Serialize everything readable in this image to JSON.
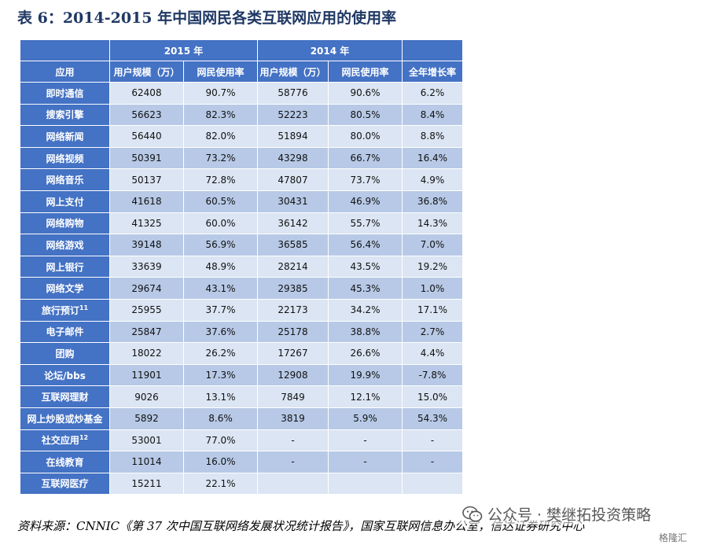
{
  "title": "表 6：2014-2015 年中国网民各类互联网应用的使用率",
  "table": {
    "group_headers": {
      "y2015": "2015 年",
      "y2014": "2014 年"
    },
    "column_headers": {
      "app": "应用",
      "users_2015": "用户规模（万）",
      "rate_2015": "网民使用率",
      "users_2014": "用户规模（万）",
      "rate_2014": "网民使用率",
      "growth": "全年增长率"
    },
    "rows": [
      {
        "app": "即时通信",
        "sup": "",
        "users_2015": "62408",
        "rate_2015": "90.7%",
        "users_2014": "58776",
        "rate_2014": "90.6%",
        "growth": "6.2%"
      },
      {
        "app": "搜索引擎",
        "sup": "",
        "users_2015": "56623",
        "rate_2015": "82.3%",
        "users_2014": "52223",
        "rate_2014": "80.5%",
        "growth": "8.4%"
      },
      {
        "app": "网络新闻",
        "sup": "",
        "users_2015": "56440",
        "rate_2015": "82.0%",
        "users_2014": "51894",
        "rate_2014": "80.0%",
        "growth": "8.8%"
      },
      {
        "app": "网络视频",
        "sup": "",
        "users_2015": "50391",
        "rate_2015": "73.2%",
        "users_2014": "43298",
        "rate_2014": "66.7%",
        "growth": "16.4%"
      },
      {
        "app": "网络音乐",
        "sup": "",
        "users_2015": "50137",
        "rate_2015": "72.8%",
        "users_2014": "47807",
        "rate_2014": "73.7%",
        "growth": "4.9%"
      },
      {
        "app": "网上支付",
        "sup": "",
        "users_2015": "41618",
        "rate_2015": "60.5%",
        "users_2014": "30431",
        "rate_2014": "46.9%",
        "growth": "36.8%"
      },
      {
        "app": "网络购物",
        "sup": "",
        "users_2015": "41325",
        "rate_2015": "60.0%",
        "users_2014": "36142",
        "rate_2014": "55.7%",
        "growth": "14.3%"
      },
      {
        "app": "网络游戏",
        "sup": "",
        "users_2015": "39148",
        "rate_2015": "56.9%",
        "users_2014": "36585",
        "rate_2014": "56.4%",
        "growth": "7.0%"
      },
      {
        "app": "网上银行",
        "sup": "",
        "users_2015": "33639",
        "rate_2015": "48.9%",
        "users_2014": "28214",
        "rate_2014": "43.5%",
        "growth": "19.2%"
      },
      {
        "app": "网络文学",
        "sup": "",
        "users_2015": "29674",
        "rate_2015": "43.1%",
        "users_2014": "29385",
        "rate_2014": "45.3%",
        "growth": "1.0%"
      },
      {
        "app": "旅行预订",
        "sup": "11",
        "users_2015": "25955",
        "rate_2015": "37.7%",
        "users_2014": "22173",
        "rate_2014": "34.2%",
        "growth": "17.1%"
      },
      {
        "app": "电子邮件",
        "sup": "",
        "users_2015": "25847",
        "rate_2015": "37.6%",
        "users_2014": "25178",
        "rate_2014": "38.8%",
        "growth": "2.7%"
      },
      {
        "app": "团购",
        "sup": "",
        "users_2015": "18022",
        "rate_2015": "26.2%",
        "users_2014": "17267",
        "rate_2014": "26.6%",
        "growth": "4.4%"
      },
      {
        "app": "论坛/bbs",
        "sup": "",
        "users_2015": "11901",
        "rate_2015": "17.3%",
        "users_2014": "12908",
        "rate_2014": "19.9%",
        "growth": "-7.8%"
      },
      {
        "app": "互联网理财",
        "sup": "",
        "users_2015": "9026",
        "rate_2015": "13.1%",
        "users_2014": "7849",
        "rate_2014": "12.1%",
        "growth": "15.0%"
      },
      {
        "app": "网上炒股或炒基金",
        "sup": "",
        "users_2015": "5892",
        "rate_2015": "8.6%",
        "users_2014": "3819",
        "rate_2014": "5.9%",
        "growth": "54.3%"
      },
      {
        "app": "社交应用",
        "sup": "12",
        "users_2015": "53001",
        "rate_2015": "77.0%",
        "users_2014": "-",
        "rate_2014": "-",
        "growth": "-"
      },
      {
        "app": "在线教育",
        "sup": "",
        "users_2015": "11014",
        "rate_2015": "16.0%",
        "users_2014": "-",
        "rate_2014": "-",
        "growth": "-"
      },
      {
        "app": "互联网医疗",
        "sup": "",
        "users_2015": "15211",
        "rate_2015": "22.1%",
        "users_2014": "",
        "rate_2014": "",
        "growth": ""
      }
    ]
  },
  "source": "资料来源：CNNIC《第 37 次中国互联网络发展状况统计报告》，国家互联网信息办公室，信达证券研究中心",
  "watermark": {
    "icon": "wechat-icon",
    "text": "公众号 · 樊继拓投资策略",
    "secondary": "格隆汇"
  },
  "colors": {
    "header_blue": "#4472c4",
    "row_light": "#dbe5f3",
    "row_dark": "#b7c9e6",
    "title_blue": "#1f3864"
  }
}
